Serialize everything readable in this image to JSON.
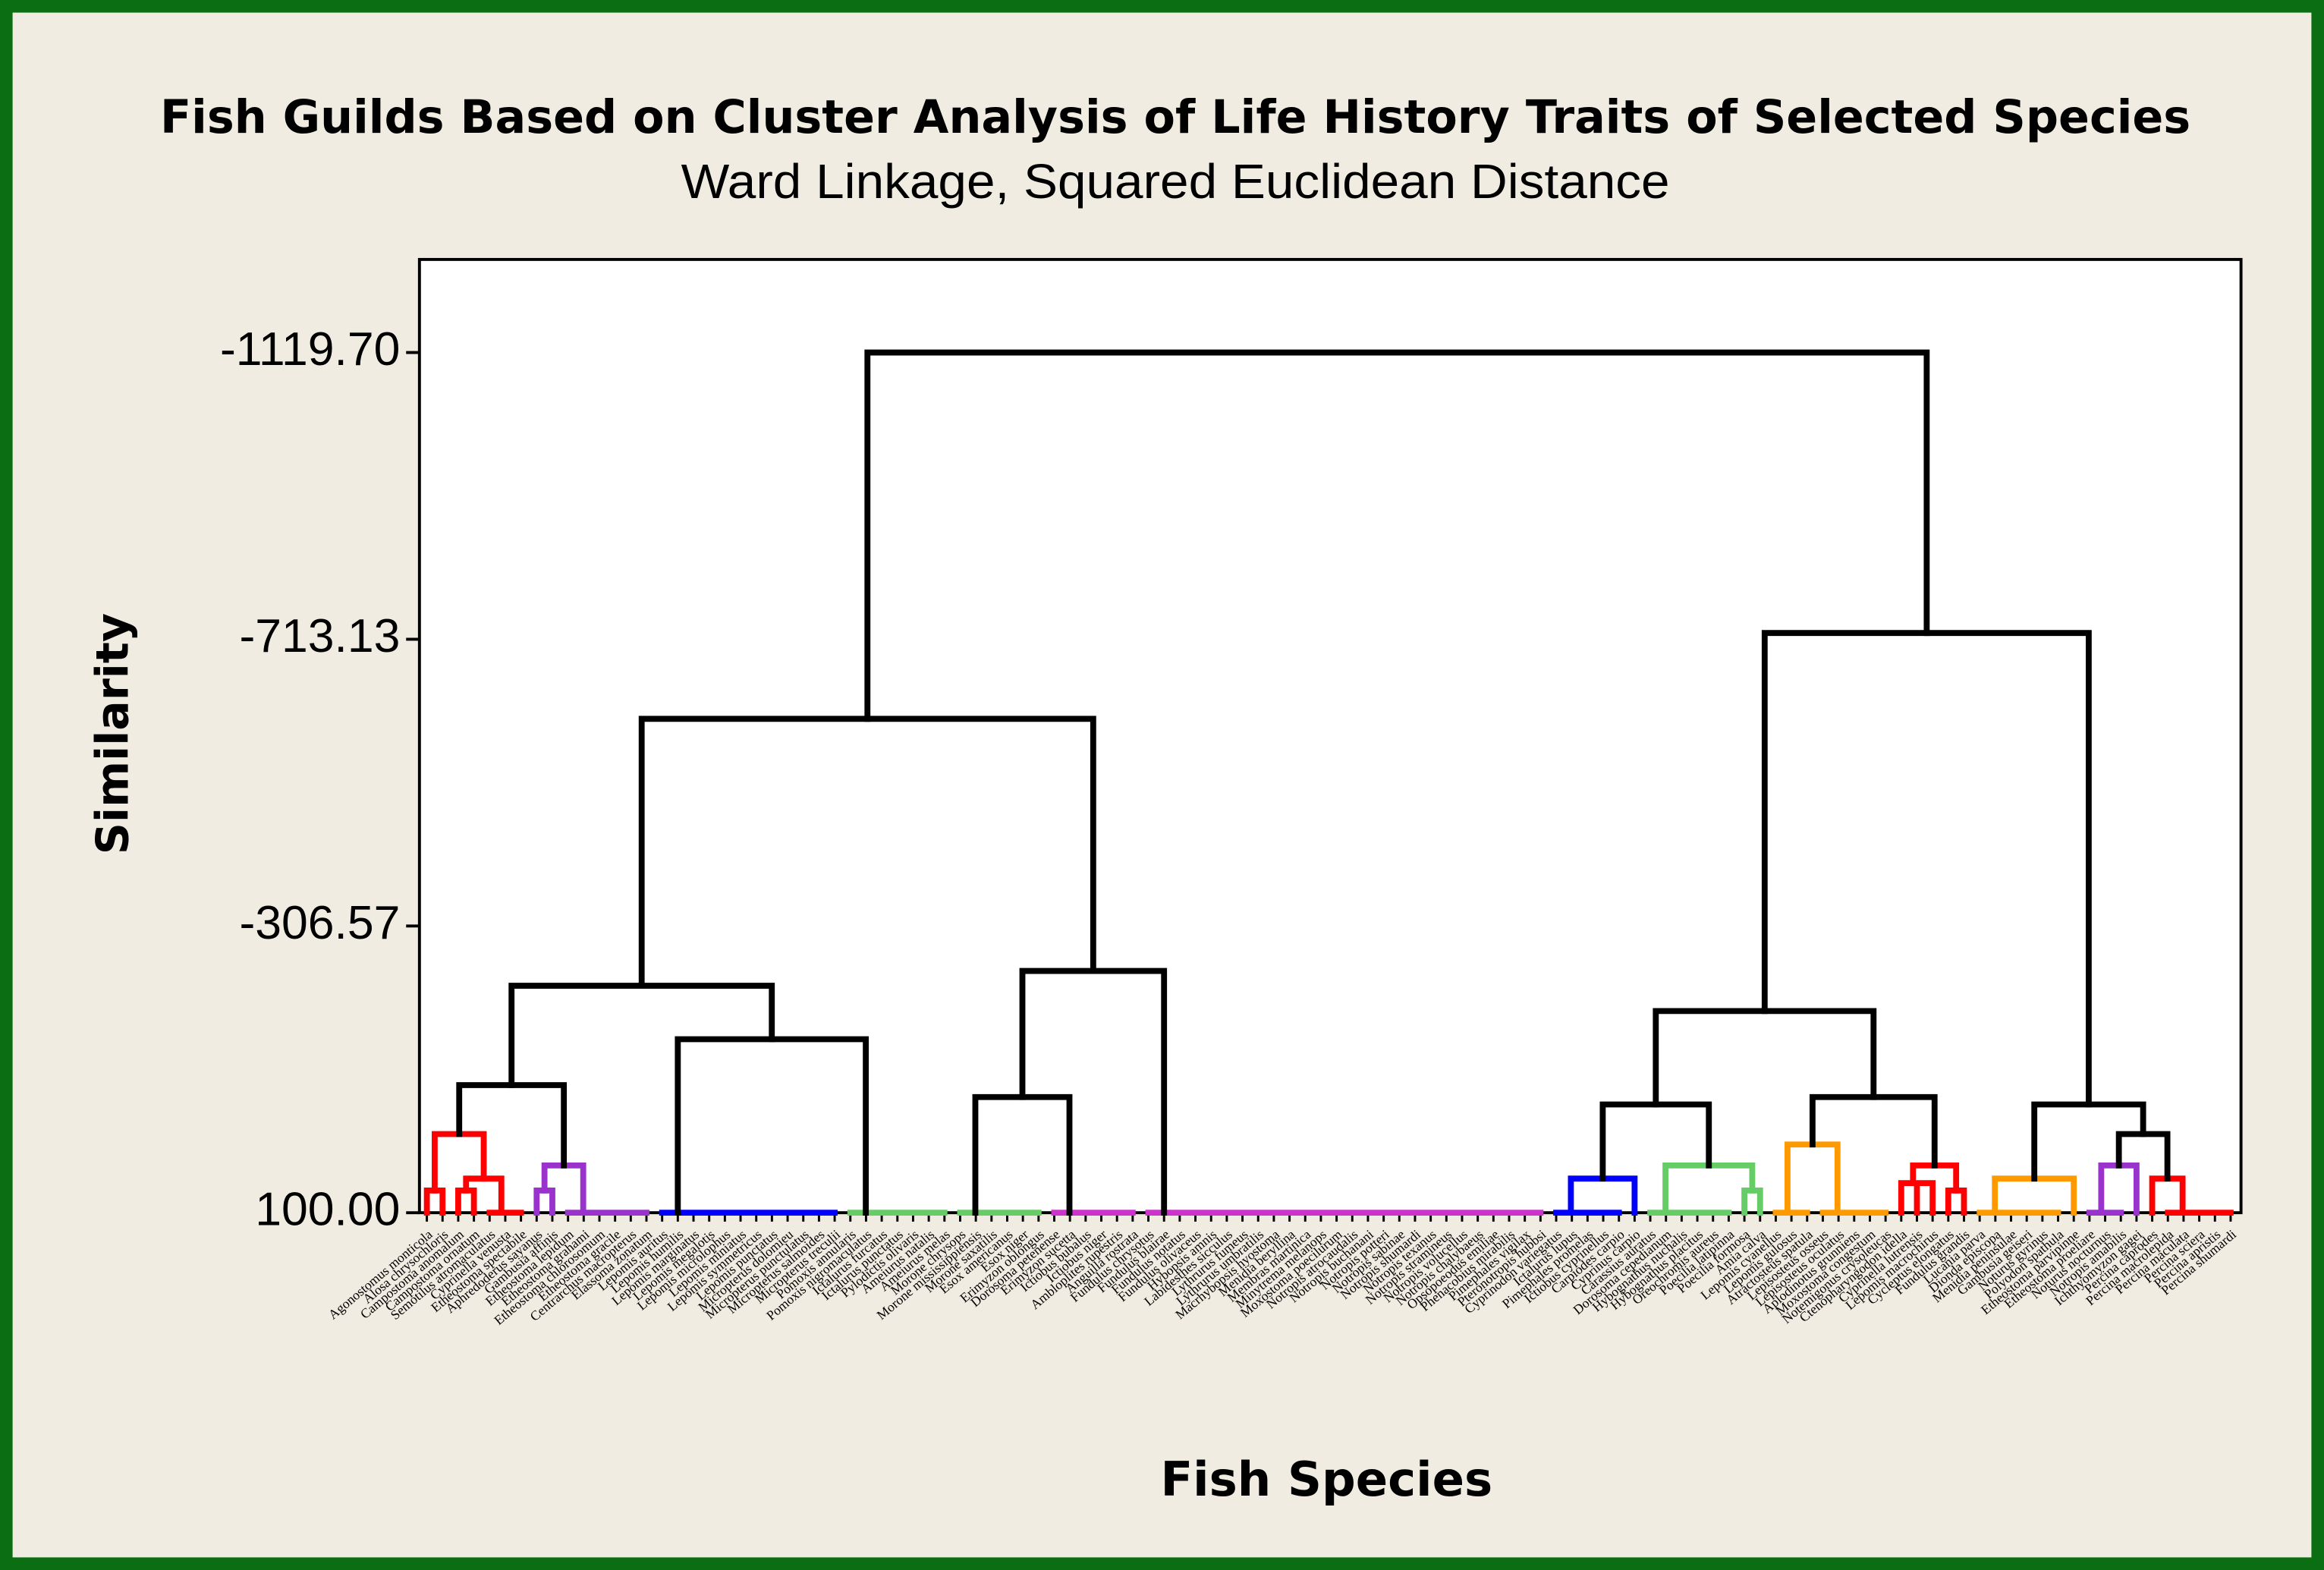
{
  "chart_data": {
    "type": "dendrogram",
    "title": "Fish Guilds Based on Cluster Analysis of Life History Traits of Selected Species",
    "subtitle": "Ward Linkage, Squared Euclidean Distance",
    "y_label": "Similarity",
    "x_label": "Fish Species",
    "ylim": [
      100,
      -1251.7
    ],
    "yticks": [
      {
        "value": 100,
        "label": "100.00"
      },
      -306.57,
      -713.13,
      {
        "value": -1119.7,
        "label": "-1119.70"
      }
    ],
    "tree": {
      "height": -1119.7,
      "color": "#000000",
      "children": [
        {
          "height": -600.3,
          "children": [
            {
              "height": -221.8,
              "children": [
                {
                  "height": -80.9,
                  "children": [
                    {
                      "height": -11.5,
                      "color": "#ff0000",
                      "children": [
                        {
                          "height": 68.5,
                          "children": [
                            {
                              "label": "Agonostomus monticola"
                            },
                            {
                              "label": "Alosa chrysochloris"
                            }
                          ]
                        },
                        {
                          "height": 51.6,
                          "children": [
                            {
                              "height": 68.5,
                              "children": [
                                {
                                  "label": "Campostoma anomalum"
                                },
                                {
                                  "label": "Campostoma ornatum"
                                }
                              ]
                            },
                            {
                              "height": 100,
                              "children": [
                                {
                                  "label": "Semotilus atromaculatus"
                                },
                                {
                                  "label": "Cyprinella venusta"
                                },
                                {
                                  "label": "Etheostoma spectabile"
                                }
                              ]
                            }
                          ]
                        }
                      ]
                    },
                    {
                      "height": 33,
                      "color": "#9933cc",
                      "children": [
                        {
                          "height": 68.5,
                          "children": [
                            {
                              "label": "Aphredoderus sayanus"
                            },
                            {
                              "label": "Gambusia affinis"
                            }
                          ]
                        },
                        {
                          "height": 100,
                          "children": [
                            {
                              "label": "Etheostoma lepidum"
                            },
                            {
                              "label": "Etheostoma grahami"
                            },
                            {
                              "label": "Etheostoma chlorosomum"
                            },
                            {
                              "label": "Etheostoma gracile"
                            },
                            {
                              "label": "Centrarchus macropterus"
                            },
                            {
                              "label": "Elassoma zonatum"
                            }
                          ]
                        }
                      ]
                    }
                  ]
                },
                {
                  "height": -146,
                  "children": [
                    {
                      "height": 100,
                      "color": "#0000ff",
                      "children": [
                        {
                          "label": "Lepomis auritus"
                        },
                        {
                          "label": "Lepomis humilis"
                        },
                        {
                          "label": "Lepomis marginatus"
                        },
                        {
                          "label": "Lepomis megalotis"
                        },
                        {
                          "label": "Lepomis microlophus"
                        },
                        {
                          "label": "Lepomis miniatus"
                        },
                        {
                          "label": "Lepomis symmetricus"
                        },
                        {
                          "label": "Lepomis punctatus"
                        },
                        {
                          "label": "Micropterus dolomieu"
                        },
                        {
                          "label": "Micropterus punctulatus"
                        },
                        {
                          "label": "Micropterus salmoides"
                        },
                        {
                          "label": "Micropterus treculii"
                        }
                      ]
                    },
                    {
                      "height": 100,
                      "color": "#66cc66",
                      "children": [
                        {
                          "label": "Pomoxis annularis"
                        },
                        {
                          "label": "Pomoxis nigromaculatus"
                        },
                        {
                          "label": "Ictalurus furcatus"
                        },
                        {
                          "label": "Ictalurus punctatus"
                        },
                        {
                          "label": "Pylodictis olivaris"
                        },
                        {
                          "label": "Ameiurus natalis"
                        },
                        {
                          "label": "Ameiurus melas"
                        }
                      ]
                    }
                  ]
                }
              ]
            },
            {
              "height": -242.8,
              "children": [
                {
                  "height": -64,
                  "children": [
                    {
                      "height": 100,
                      "color": "#66cc66",
                      "children": [
                        {
                          "label": "Morone chrysops"
                        },
                        {
                          "label": "Morone mississippiensis"
                        },
                        {
                          "label": "Morone saxatilis"
                        },
                        {
                          "label": "Esox americanus"
                        },
                        {
                          "label": "Esox niger"
                        },
                        {
                          "label": "Erimyzon oblongus"
                        }
                      ]
                    },
                    {
                      "height": 100,
                      "color": "#cc33cc",
                      "children": [
                        {
                          "label": "Dorosoma petenense"
                        },
                        {
                          "label": "Erimyzon sucetta"
                        },
                        {
                          "label": "Ictiobus bubalus"
                        },
                        {
                          "label": "Ictiobus niger"
                        },
                        {
                          "label": "Ambloplites rupestris"
                        },
                        {
                          "label": "Anguilla rostrata"
                        }
                      ]
                    }
                  ]
                },
                {
                  "height": 100,
                  "color": "#cc33cc",
                  "children": [
                    {
                      "label": "Fundulus chrysotus"
                    },
                    {
                      "label": "Fundulus blairae"
                    },
                    {
                      "label": "Fundulus notatus"
                    },
                    {
                      "label": "Fundulus olivaceus"
                    },
                    {
                      "label": "Hybopsis amnis"
                    },
                    {
                      "label": "Labidesthes sicculus"
                    },
                    {
                      "label": "Lythrurus fumeus"
                    },
                    {
                      "label": "Lythrurus umbratilis"
                    },
                    {
                      "label": "Macrhybopsis hyostoma"
                    },
                    {
                      "label": "Menidia beryllina"
                    },
                    {
                      "label": "Membras martinica"
                    },
                    {
                      "label": "Minytrema melanops"
                    },
                    {
                      "label": "Moxostoma poecilurum"
                    },
                    {
                      "label": "Notropis atrocaudalis"
                    },
                    {
                      "label": "Notropis buchanani"
                    },
                    {
                      "label": "Notropis potteri"
                    },
                    {
                      "label": "Notropis sabinae"
                    },
                    {
                      "label": "Notropis shumardi"
                    },
                    {
                      "label": "Notropis texanus"
                    },
                    {
                      "label": "Notropis stramineus"
                    },
                    {
                      "label": "Notropis volucellus"
                    },
                    {
                      "label": "Notropis chalybaeus"
                    },
                    {
                      "label": "Opsopoeodus emiliae"
                    },
                    {
                      "label": "Phenacobius mirabilis"
                    },
                    {
                      "label": "Pimephales vigilax"
                    },
                    {
                      "label": "Pteronotropis hubbsi"
                    }
                  ]
                }
              ]
            }
          ]
        },
        {
          "height": -722,
          "children": [
            {
              "height": -186,
              "children": [
                {
                  "height": -53.5,
                  "children": [
                    {
                      "height": 51.6,
                      "color": "#0000ff",
                      "children": [
                        {
                          "height": 100,
                          "children": [
                            {
                              "label": "Cyprinodon variegatus"
                            },
                            {
                              "label": "Ictalurus lupus"
                            },
                            {
                              "label": "Pimephales promelas"
                            },
                            {
                              "label": "Ictiobus cyprinellus"
                            },
                            {
                              "label": "Carpiodes carpio"
                            }
                          ]
                        },
                        {
                          "label": "Cyprinus carpio"
                        }
                      ]
                    },
                    {
                      "height": 33,
                      "color": "#66cc66",
                      "children": [
                        {
                          "height": 100,
                          "children": [
                            {
                              "label": "Carassius auratus"
                            },
                            {
                              "label": "Dorosoma cepedianum"
                            },
                            {
                              "label": "Hybognathus nuchalis"
                            },
                            {
                              "label": "Hybognathus placitus"
                            },
                            {
                              "label": "Oreochromis aureus"
                            },
                            {
                              "label": "Poecilia latipinna"
                            }
                          ]
                        },
                        {
                          "height": 68.5,
                          "children": [
                            {
                              "label": "Poecilia formosa"
                            },
                            {
                              "label": "Amia calva"
                            }
                          ]
                        }
                      ]
                    }
                  ]
                },
                {
                  "height": -64,
                  "children": [
                    {
                      "height": 3.3,
                      "color": "#ff9900",
                      "children": [
                        {
                          "height": 100,
                          "children": [
                            {
                              "label": "Lepomis cyanellus"
                            },
                            {
                              "label": "Lepomis gulosus"
                            },
                            {
                              "label": "Atractosteus spatula"
                            }
                          ]
                        },
                        {
                          "height": 100,
                          "children": [
                            {
                              "label": "Lepisosteus osseus"
                            },
                            {
                              "label": "Lepisosteus oculatus"
                            },
                            {
                              "label": "Aplodinotus grunniens"
                            },
                            {
                              "label": "Moxostoma congestum"
                            },
                            {
                              "label": "Notemigonus crysoleucas"
                            }
                          ]
                        }
                      ]
                    },
                    {
                      "height": 33,
                      "color": "#ff0000",
                      "children": [
                        {
                          "height": 58,
                          "children": [
                            {
                              "label": "Ctenopharyngodon idella"
                            },
                            {
                              "label": "Cyprinella lutrensis"
                            },
                            {
                              "label": "Lepomis macrochirus"
                            }
                          ]
                        },
                        {
                          "height": 68.5,
                          "children": [
                            {
                              "label": "Cycleptus elongatus"
                            },
                            {
                              "label": "Fundulus grandis"
                            }
                          ]
                        }
                      ]
                    }
                  ]
                }
              ]
            },
            {
              "height": -53.5,
              "children": [
                {
                  "height": 51.6,
                  "color": "#ff9900",
                  "children": [
                    {
                      "height": 100,
                      "children": [
                        {
                          "label": "Lucania parva"
                        },
                        {
                          "label": "Dionda episcopa"
                        },
                        {
                          "label": "Menidia peninsulae"
                        },
                        {
                          "label": "Gambusia geiseri"
                        },
                        {
                          "label": "Noturus gyrinus"
                        },
                        {
                          "label": "Polyodon spathula"
                        }
                      ]
                    },
                    {
                      "label": "Etheostoma parvipinne"
                    }
                  ]
                },
                {
                  "height": -11.5,
                  "children": [
                    {
                      "height": 33,
                      "color": "#9933cc",
                      "children": [
                        {
                          "height": 100,
                          "children": [
                            {
                              "label": "Etheostoma proeliare"
                            },
                            {
                              "label": "Noturus nocturnus"
                            },
                            {
                              "label": "Notropis amabilis"
                            }
                          ]
                        },
                        {
                          "label": "Ichthyomyzon gagei"
                        }
                      ]
                    },
                    {
                      "height": 51.6,
                      "color": "#ff0000",
                      "children": [
                        {
                          "label": "Percina caprodes"
                        },
                        {
                          "height": 100,
                          "children": [
                            {
                              "label": "Percina macrolepida"
                            },
                            {
                              "label": "Percina maculata"
                            },
                            {
                              "label": "Percina sciera"
                            },
                            {
                              "label": "Percina apristis"
                            },
                            {
                              "label": "Percina shumardi"
                            }
                          ]
                        }
                      ]
                    }
                  ]
                }
              ]
            }
          ]
        }
      ]
    }
  }
}
